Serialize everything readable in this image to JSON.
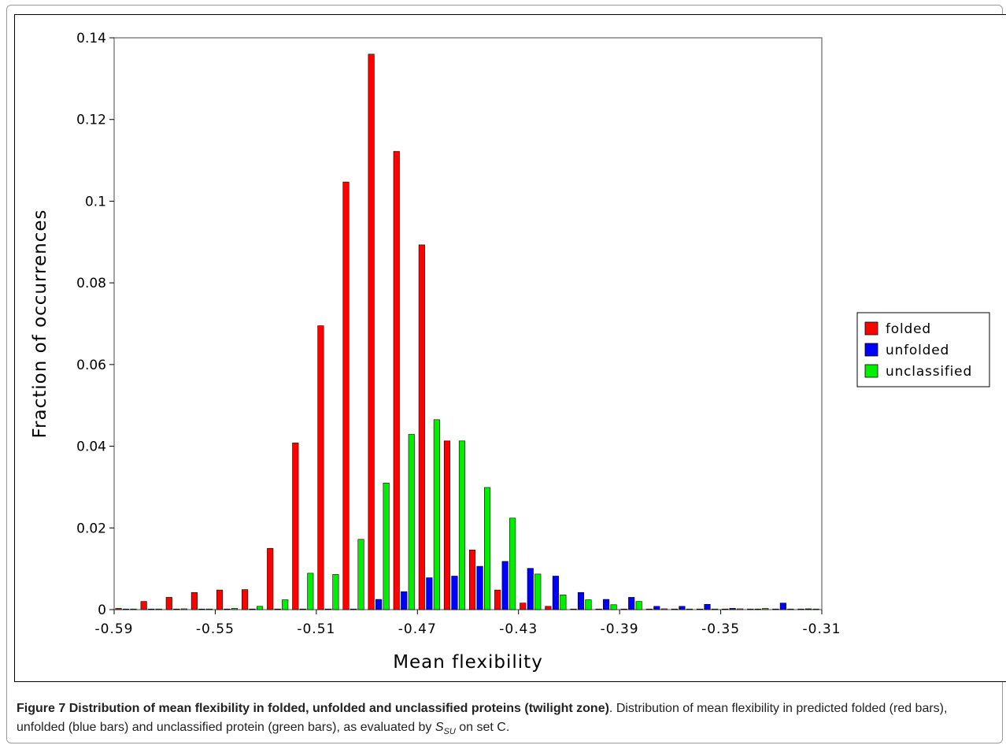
{
  "chart_data": {
    "type": "bar",
    "xlabel": "Mean flexibility",
    "ylabel": "Fraction of occurrences",
    "xlim": [
      -0.59,
      -0.31
    ],
    "ylim": [
      0,
      0.14
    ],
    "x_tick_labels": [
      "-0.59",
      "-0.55",
      "-0.51",
      "-0.47",
      "-0.43",
      "-0.39",
      "-0.35",
      "-0.31"
    ],
    "y_tick_labels": [
      "0",
      "0.02",
      "0.04",
      "0.06",
      "0.08",
      "0.1",
      "0.12",
      "0.14"
    ],
    "legend_position": "right",
    "categories": [
      -0.585,
      -0.575,
      -0.565,
      -0.555,
      -0.545,
      -0.535,
      -0.525,
      -0.515,
      -0.505,
      -0.495,
      -0.485,
      -0.475,
      -0.465,
      -0.455,
      -0.445,
      -0.435,
      -0.425,
      -0.415,
      -0.405,
      -0.395,
      -0.385,
      -0.375,
      -0.365,
      -0.355,
      -0.345,
      -0.335,
      -0.325,
      -0.315
    ],
    "series": [
      {
        "name": "folded",
        "color": "#ff0000",
        "values": [
          0.0003,
          0.002,
          0.003,
          0.0042,
          0.0048,
          0.0049,
          0.015,
          0.0408,
          0.0695,
          0.1047,
          0.136,
          0.1122,
          0.0893,
          0.0413,
          0.0146,
          0.0048,
          0.0016,
          0.0008,
          0,
          0,
          0,
          0,
          0,
          0,
          0,
          0,
          0,
          0
        ]
      },
      {
        "name": "unfolded",
        "color": "#0000ff",
        "values": [
          0,
          0,
          0,
          0,
          0,
          0,
          0,
          0,
          0,
          0,
          0.0025,
          0.0044,
          0.0078,
          0.0082,
          0.0106,
          0.0118,
          0.0101,
          0.0082,
          0.0042,
          0.0025,
          0.003,
          0.0008,
          0.0008,
          0.0013,
          0.0003,
          0,
          0.0016,
          0.0002
        ]
      },
      {
        "name": "unclassified",
        "color": "#00ee00",
        "values": [
          0,
          0,
          0.0002,
          0,
          0.0003,
          0.0008,
          0.0024,
          0.0089,
          0.0086,
          0.0172,
          0.031,
          0.0429,
          0.0465,
          0.0413,
          0.0299,
          0.0224,
          0.0087,
          0.0036,
          0.0024,
          0.0012,
          0.002,
          0.0002,
          0,
          0,
          0.0002,
          0.0003,
          0,
          0
        ]
      }
    ]
  },
  "caption": {
    "label": "Figure 7",
    "title": "Distribution of mean flexibility in folded, unfolded and unclassified proteins (twilight zone)",
    "body_before": ". Distribution of mean flexibility in predicted folded (red bars), unfolded (blue bars) and unclassified protein (green bars), as evaluated by ",
    "symbol": "S",
    "symbol_sub": "SU",
    "body_after": " on set C."
  }
}
